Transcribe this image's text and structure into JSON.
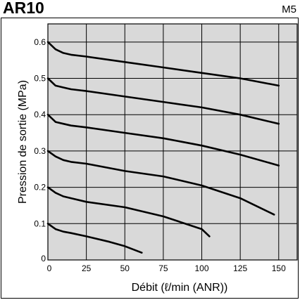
{
  "header": {
    "title": "AR10",
    "model": "M5"
  },
  "chart_data": {
    "type": "line",
    "title": "AR10",
    "subtitle": "M5",
    "xlabel": "Débit (ℓ/min (ANR))",
    "ylabel": "Pression de sortie (MPa)",
    "xlim": [
      0,
      162
    ],
    "ylim": [
      0,
      0.65
    ],
    "x_ticks": [
      0,
      25,
      50,
      75,
      100,
      125,
      150
    ],
    "y_ticks": [
      0,
      0.1,
      0.2,
      0.3,
      0.4,
      0.5,
      0.6
    ],
    "x_tick_labels": [
      "0",
      "25",
      "50",
      "75",
      "100",
      "125",
      "150"
    ],
    "y_tick_labels": [
      "0",
      "0.1",
      "0.2",
      "0.3",
      "0.4",
      "0.5",
      "0.6"
    ],
    "grid": true,
    "background": "#d9d9d9",
    "series": [
      {
        "x": [
          0,
          5,
          10,
          15,
          25,
          50,
          75,
          100,
          125,
          150
        ],
        "y": [
          0.6,
          0.58,
          0.57,
          0.565,
          0.56,
          0.545,
          0.53,
          0.515,
          0.5,
          0.48
        ]
      },
      {
        "x": [
          0,
          5,
          10,
          15,
          25,
          50,
          75,
          100,
          125,
          150
        ],
        "y": [
          0.5,
          0.48,
          0.475,
          0.47,
          0.465,
          0.45,
          0.435,
          0.42,
          0.4,
          0.375
        ]
      },
      {
        "x": [
          0,
          5,
          10,
          15,
          25,
          50,
          75,
          100,
          125,
          150
        ],
        "y": [
          0.4,
          0.38,
          0.375,
          0.37,
          0.365,
          0.35,
          0.335,
          0.315,
          0.29,
          0.26
        ]
      },
      {
        "x": [
          0,
          5,
          10,
          15,
          25,
          50,
          75,
          100,
          125,
          147
        ],
        "y": [
          0.3,
          0.285,
          0.275,
          0.27,
          0.265,
          0.245,
          0.23,
          0.205,
          0.17,
          0.125
        ]
      },
      {
        "x": [
          0,
          5,
          10,
          15,
          25,
          50,
          75,
          100,
          105
        ],
        "y": [
          0.2,
          0.185,
          0.175,
          0.17,
          0.16,
          0.145,
          0.12,
          0.085,
          0.065
        ]
      },
      {
        "x": [
          0,
          5,
          10,
          15,
          25,
          40,
          50,
          61
        ],
        "y": [
          0.1,
          0.085,
          0.078,
          0.074,
          0.065,
          0.05,
          0.038,
          0.02
        ]
      }
    ]
  }
}
